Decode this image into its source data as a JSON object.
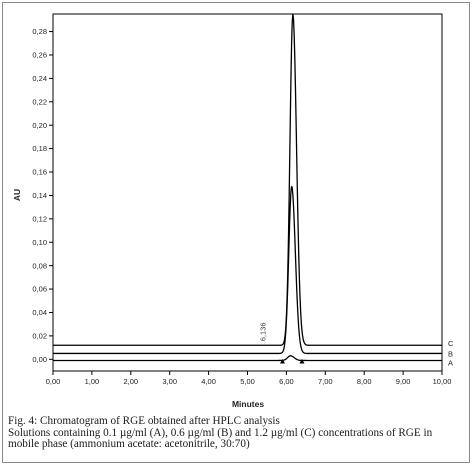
{
  "caption": {
    "line1": "Fig. 4: Chromatogram of RGE obtained after HPLC analysis",
    "line2": "Solutions containing 0.1 µg/ml (A), 0.6 µg/ml (B) and 1.2 µg/ml (C) concentrations of RGE in",
    "line3": "mobile phase (ammonium acetate: acetonitrile, 30:70)"
  },
  "chart_data": {
    "type": "line",
    "title": "",
    "xlabel": "Minutes",
    "ylabel": "AU",
    "xlim": [
      0,
      10
    ],
    "ylim": [
      -0.01,
      0.295
    ],
    "x_ticks": [
      "0,00",
      "1,00",
      "2,00",
      "3,00",
      "4,00",
      "5,00",
      "6,00",
      "7,00",
      "8,00",
      "9,00",
      "10,00"
    ],
    "y_ticks": [
      "0,00",
      "0,02",
      "0,04",
      "0,06",
      "0,08",
      "0,10",
      "0,12",
      "0,14",
      "0,16",
      "0,18",
      "0,20",
      "0,22",
      "0,24",
      "0,26",
      "0,28"
    ],
    "grid": false,
    "peak_label": "6,136",
    "peak_time": 6.136,
    "series": [
      {
        "name": "A",
        "baseline": -0.001,
        "peak_height": 0.004,
        "color": "#000000"
      },
      {
        "name": "B",
        "baseline": 0.005,
        "peak_height": 0.143,
        "color": "#000000"
      },
      {
        "name": "C",
        "baseline": 0.012,
        "peak_height": 0.283,
        "color": "#000000"
      }
    ]
  }
}
